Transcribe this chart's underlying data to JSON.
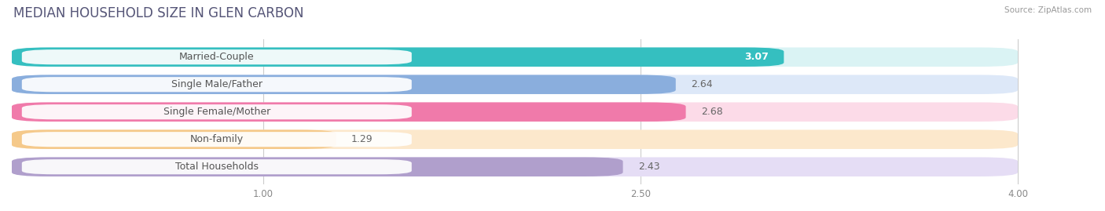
{
  "title": "MEDIAN HOUSEHOLD SIZE IN GLEN CARBON",
  "source": "Source: ZipAtlas.com",
  "categories": [
    "Married-Couple",
    "Single Male/Father",
    "Single Female/Mother",
    "Non-family",
    "Total Households"
  ],
  "values": [
    3.07,
    2.64,
    2.68,
    1.29,
    2.43
  ],
  "bar_colors": [
    "#35bfc0",
    "#8aaedd",
    "#f07aaa",
    "#f5c98a",
    "#b09fcc"
  ],
  "bar_bg_colors": [
    "#daf3f4",
    "#dde8f8",
    "#fcdbe8",
    "#fce8cc",
    "#e5ddf5"
  ],
  "value_colors": [
    "#ffffff",
    "#666666",
    "#666666",
    "#666666",
    "#666666"
  ],
  "xlim_data": [
    0,
    4.0
  ],
  "x_min": 0,
  "x_max": 4.0,
  "xticks": [
    1.0,
    2.5,
    4.0
  ],
  "xtick_labels": [
    "1.00",
    "2.50",
    "4.00"
  ],
  "title_fontsize": 12,
  "label_fontsize": 9,
  "value_fontsize": 9,
  "background_color": "#ffffff",
  "row_bg_color": "#f0f0f0"
}
